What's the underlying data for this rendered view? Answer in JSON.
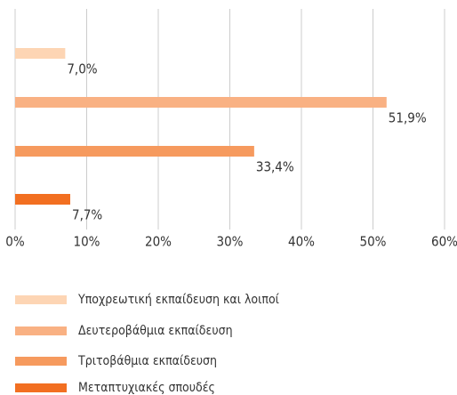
{
  "chart_data": {
    "type": "bar",
    "orientation": "horizontal",
    "categories": [
      "Υποχρεωτική εκπαίδευση και λοιποί",
      "Δευτεροβάθμια εκπαίδευση",
      "Τριτοβάθμια εκπαίδευση",
      "Μεταπτυχιακές σπουδές"
    ],
    "values": [
      7.0,
      51.9,
      33.4,
      7.7
    ],
    "value_labels": [
      "7,0%",
      "51,9%",
      "33,4%",
      "7,7%"
    ],
    "colors": [
      "#fdd5b4",
      "#f9b183",
      "#f69a5e",
      "#f26f21"
    ],
    "xlim": [
      0,
      60
    ],
    "xticks": [
      {
        "value": 0,
        "label": "0%"
      },
      {
        "value": 10,
        "label": "10%"
      },
      {
        "value": 20,
        "label": "20%"
      },
      {
        "value": 30,
        "label": "30%"
      },
      {
        "value": 40,
        "label": "40%"
      },
      {
        "value": 50,
        "label": "50%"
      },
      {
        "value": 60,
        "label": "60%"
      }
    ],
    "grid": true,
    "legend": "bottom"
  }
}
